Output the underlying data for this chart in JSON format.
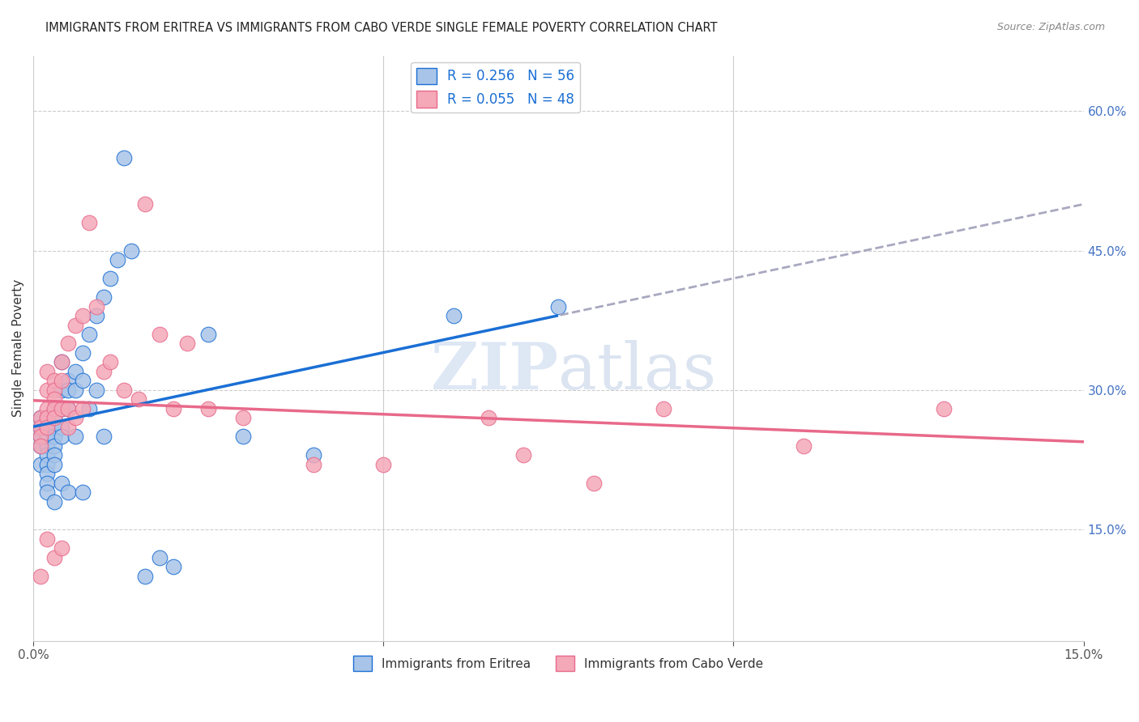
{
  "title": "IMMIGRANTS FROM ERITREA VS IMMIGRANTS FROM CABO VERDE SINGLE FEMALE POVERTY CORRELATION CHART",
  "source": "Source: ZipAtlas.com",
  "ylabel": "Single Female Poverty",
  "xlim": [
    0.0,
    0.15
  ],
  "ylim": [
    0.03,
    0.66
  ],
  "legend_eritrea": "R = 0.256   N = 56",
  "legend_caboverde": "R = 0.055   N = 48",
  "eritrea_color": "#a8c4e8",
  "caboverde_color": "#f4a8b8",
  "eritrea_line_color": "#1a6fd4",
  "caboverde_line_color": "#e8698a",
  "dashed_line_color": "#a8a8c0",
  "background_color": "#ffffff",
  "watermark_zip": "ZIP",
  "watermark_atlas": "atlas",
  "eritrea_x": [
    0.001,
    0.001,
    0.001,
    0.001,
    0.001,
    0.002,
    0.002,
    0.002,
    0.002,
    0.002,
    0.002,
    0.002,
    0.002,
    0.002,
    0.003,
    0.003,
    0.003,
    0.003,
    0.003,
    0.003,
    0.003,
    0.003,
    0.004,
    0.004,
    0.004,
    0.004,
    0.004,
    0.004,
    0.005,
    0.005,
    0.005,
    0.005,
    0.006,
    0.006,
    0.006,
    0.007,
    0.007,
    0.007,
    0.008,
    0.008,
    0.009,
    0.009,
    0.01,
    0.01,
    0.011,
    0.012,
    0.013,
    0.014,
    0.016,
    0.018,
    0.02,
    0.025,
    0.03,
    0.04,
    0.06,
    0.075
  ],
  "eritrea_y": [
    0.25,
    0.27,
    0.24,
    0.26,
    0.22,
    0.27,
    0.26,
    0.24,
    0.25,
    0.23,
    0.22,
    0.21,
    0.2,
    0.19,
    0.28,
    0.27,
    0.26,
    0.25,
    0.24,
    0.23,
    0.22,
    0.18,
    0.33,
    0.3,
    0.28,
    0.26,
    0.25,
    0.2,
    0.31,
    0.3,
    0.28,
    0.19,
    0.32,
    0.3,
    0.25,
    0.34,
    0.31,
    0.19,
    0.36,
    0.28,
    0.38,
    0.3,
    0.4,
    0.25,
    0.42,
    0.44,
    0.55,
    0.45,
    0.1,
    0.12,
    0.11,
    0.36,
    0.25,
    0.23,
    0.38,
    0.39
  ],
  "caboverde_x": [
    0.001,
    0.001,
    0.001,
    0.001,
    0.001,
    0.002,
    0.002,
    0.002,
    0.002,
    0.002,
    0.002,
    0.003,
    0.003,
    0.003,
    0.003,
    0.003,
    0.003,
    0.004,
    0.004,
    0.004,
    0.004,
    0.005,
    0.005,
    0.005,
    0.006,
    0.006,
    0.007,
    0.007,
    0.008,
    0.009,
    0.01,
    0.011,
    0.013,
    0.015,
    0.016,
    0.018,
    0.02,
    0.022,
    0.025,
    0.03,
    0.04,
    0.05,
    0.065,
    0.07,
    0.08,
    0.09,
    0.11,
    0.13
  ],
  "caboverde_y": [
    0.27,
    0.26,
    0.25,
    0.24,
    0.1,
    0.32,
    0.3,
    0.28,
    0.27,
    0.26,
    0.14,
    0.31,
    0.3,
    0.29,
    0.28,
    0.27,
    0.12,
    0.33,
    0.31,
    0.28,
    0.13,
    0.35,
    0.28,
    0.26,
    0.37,
    0.27,
    0.38,
    0.28,
    0.48,
    0.39,
    0.32,
    0.33,
    0.3,
    0.29,
    0.5,
    0.36,
    0.28,
    0.35,
    0.28,
    0.27,
    0.22,
    0.22,
    0.27,
    0.23,
    0.2,
    0.28,
    0.24,
    0.28
  ]
}
